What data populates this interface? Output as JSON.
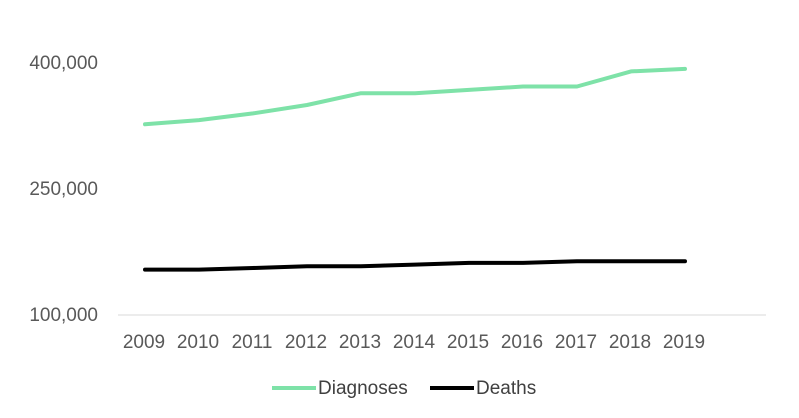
{
  "chart_data": {
    "type": "line",
    "title": "",
    "xlabel": "",
    "ylabel": "",
    "categories": [
      "2009",
      "2010",
      "2011",
      "2012",
      "2013",
      "2014",
      "2015",
      "2016",
      "2017",
      "2018",
      "2019"
    ],
    "series": [
      {
        "name": "Diagnoses",
        "color": "#7ee2a8",
        "values": [
          327000,
          332000,
          340000,
          350000,
          364000,
          364000,
          368000,
          372000,
          372000,
          390000,
          393000
        ]
      },
      {
        "name": "Deaths",
        "color": "#000000",
        "values": [
          154000,
          154000,
          156000,
          158000,
          158000,
          160000,
          162000,
          162000,
          164000,
          164000,
          164000
        ]
      }
    ],
    "ylim": [
      100000,
      400000
    ],
    "yticks": [
      100000,
      250000,
      400000
    ],
    "ytick_labels": [
      "100,000",
      "250,000",
      "400,000"
    ],
    "grid": false,
    "legend_position": "bottom"
  }
}
